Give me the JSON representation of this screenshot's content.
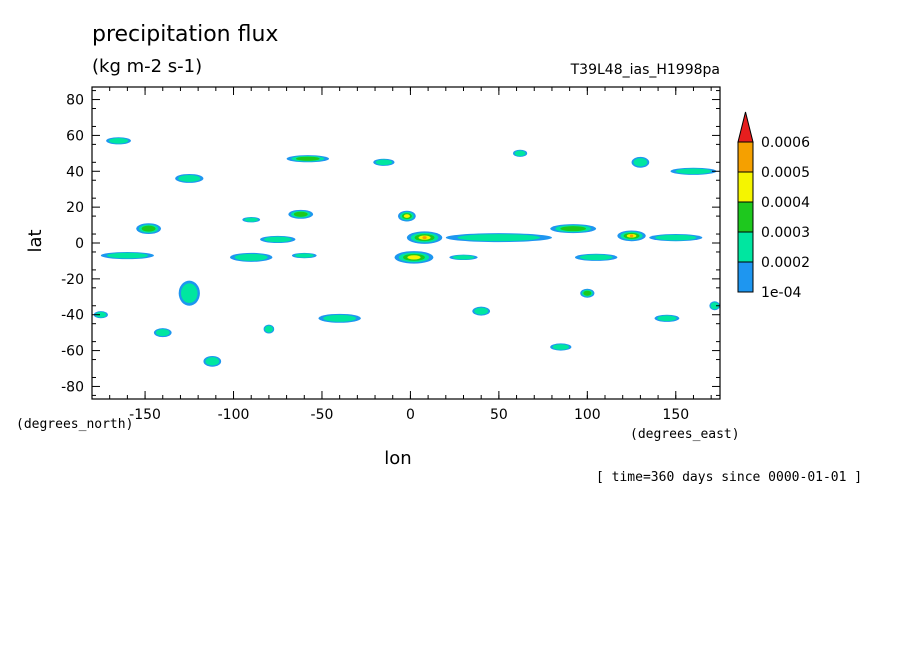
{
  "header": {
    "title": "precipitation flux",
    "units": "(kg m-2 s-1)",
    "run_id": "T39L48_ias_H1998pa"
  },
  "footer": {
    "time_note": "[ time=360 days since 0000-01-01 ]"
  },
  "chart_data": {
    "type": "heatmap",
    "title": "precipitation flux",
    "subtitle": "(kg m-2 s-1)",
    "xlabel": "lon",
    "ylabel": "lat",
    "x_unit_label": "(degrees_east)",
    "y_unit_label": "(degrees_north)",
    "xlim": [
      -180,
      175
    ],
    "ylim": [
      -87,
      87
    ],
    "x_ticks": [
      -150,
      -100,
      -50,
      0,
      50,
      100,
      150
    ],
    "y_ticks": [
      -80,
      -60,
      -40,
      -20,
      0,
      20,
      40,
      60,
      80
    ],
    "grid": false,
    "legend_placement": "right",
    "colorbar": {
      "levels": [
        "1e-04",
        "0.0002",
        "0.0003",
        "0.0004",
        "0.0005",
        "0.0006"
      ],
      "colors": [
        "#1e96f0",
        "#00e6a0",
        "#1ec81e",
        "#f5f500",
        "#f5a000",
        "#e61e1e"
      ]
    },
    "features": [
      {
        "lon": 8,
        "lat": 3,
        "w": 20,
        "h": 7,
        "level": 4
      },
      {
        "lon": 2,
        "lat": -8,
        "w": 22,
        "h": 7,
        "level": 3
      },
      {
        "lon": -2,
        "lat": 15,
        "w": 10,
        "h": 6,
        "level": 3
      },
      {
        "lon": 50,
        "lat": 3,
        "w": 60,
        "h": 5,
        "level": 1
      },
      {
        "lon": 92,
        "lat": 8,
        "w": 26,
        "h": 5,
        "level": 2
      },
      {
        "lon": 125,
        "lat": 4,
        "w": 16,
        "h": 6,
        "level": 4
      },
      {
        "lon": 150,
        "lat": 3,
        "w": 30,
        "h": 4,
        "level": 1
      },
      {
        "lon": -148,
        "lat": 8,
        "w": 14,
        "h": 6,
        "level": 2
      },
      {
        "lon": -160,
        "lat": -7,
        "w": 30,
        "h": 4,
        "level": 1
      },
      {
        "lon": -90,
        "lat": -8,
        "w": 24,
        "h": 5,
        "level": 1
      },
      {
        "lon": -125,
        "lat": -28,
        "w": 12,
        "h": 14,
        "level": 1
      },
      {
        "lon": -140,
        "lat": -50,
        "w": 10,
        "h": 5,
        "level": 1
      },
      {
        "lon": -112,
        "lat": -66,
        "w": 10,
        "h": 6,
        "level": 1
      },
      {
        "lon": -75,
        "lat": 2,
        "w": 20,
        "h": 4,
        "level": 1
      },
      {
        "lon": -165,
        "lat": 57,
        "w": 14,
        "h": 4,
        "level": 1
      },
      {
        "lon": -125,
        "lat": 36,
        "w": 16,
        "h": 5,
        "level": 1
      },
      {
        "lon": -58,
        "lat": 47,
        "w": 24,
        "h": 4,
        "level": 2
      },
      {
        "lon": -62,
        "lat": 16,
        "w": 14,
        "h": 5,
        "level": 2
      },
      {
        "lon": -90,
        "lat": 13,
        "w": 10,
        "h": 3,
        "level": 1
      },
      {
        "lon": -15,
        "lat": 45,
        "w": 12,
        "h": 4,
        "level": 1
      },
      {
        "lon": 62,
        "lat": 50,
        "w": 8,
        "h": 4,
        "level": 1
      },
      {
        "lon": 130,
        "lat": 45,
        "w": 10,
        "h": 6,
        "level": 1
      },
      {
        "lon": 160,
        "lat": 40,
        "w": 26,
        "h": 4,
        "level": 1
      },
      {
        "lon": 105,
        "lat": -8,
        "w": 24,
        "h": 4,
        "level": 1
      },
      {
        "lon": 100,
        "lat": -28,
        "w": 8,
        "h": 5,
        "level": 2
      },
      {
        "lon": 40,
        "lat": -38,
        "w": 10,
        "h": 5,
        "level": 1
      },
      {
        "lon": 85,
        "lat": -58,
        "w": 12,
        "h": 4,
        "level": 1
      },
      {
        "lon": 145,
        "lat": -42,
        "w": 14,
        "h": 4,
        "level": 1
      },
      {
        "lon": -40,
        "lat": -42,
        "w": 24,
        "h": 5,
        "level": 1
      },
      {
        "lon": 172,
        "lat": -35,
        "w": 6,
        "h": 5,
        "level": 1
      },
      {
        "lon": -175,
        "lat": -40,
        "w": 8,
        "h": 4,
        "level": 1
      },
      {
        "lon": -80,
        "lat": -48,
        "w": 6,
        "h": 5,
        "level": 1
      },
      {
        "lon": -60,
        "lat": -7,
        "w": 14,
        "h": 3,
        "level": 1
      },
      {
        "lon": 30,
        "lat": -8,
        "w": 16,
        "h": 3,
        "level": 1
      }
    ]
  }
}
